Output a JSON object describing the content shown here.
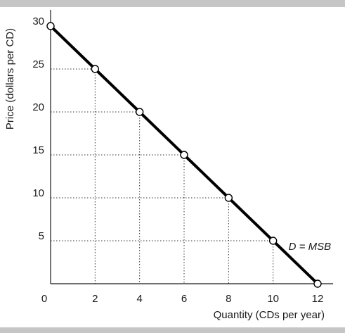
{
  "chart_data": {
    "type": "line",
    "xlabel": "Quantity (CDs per year)",
    "ylabel": "Price (dollars per CD)",
    "xlim": [
      0,
      12
    ],
    "ylim": [
      0,
      30
    ],
    "x_ticks": [
      "0",
      "2",
      "4",
      "6",
      "8",
      "10",
      "12"
    ],
    "y_ticks": [
      "5",
      "10",
      "15",
      "20",
      "25",
      "30"
    ],
    "grid": "dotted guide lines from marked points to both axes",
    "series": [
      {
        "name": "D = MSB",
        "points": [
          {
            "x": 0,
            "y": 30
          },
          {
            "x": 2,
            "y": 25
          },
          {
            "x": 4,
            "y": 20
          },
          {
            "x": 6,
            "y": 15
          },
          {
            "x": 8,
            "y": 10
          },
          {
            "x": 10,
            "y": 5
          },
          {
            "x": 12,
            "y": 0
          }
        ]
      }
    ],
    "colors": {
      "line": "#000000",
      "marker_fill": "#ffffff",
      "guides": "#333333",
      "frame_band": "#c6c6c6"
    }
  }
}
